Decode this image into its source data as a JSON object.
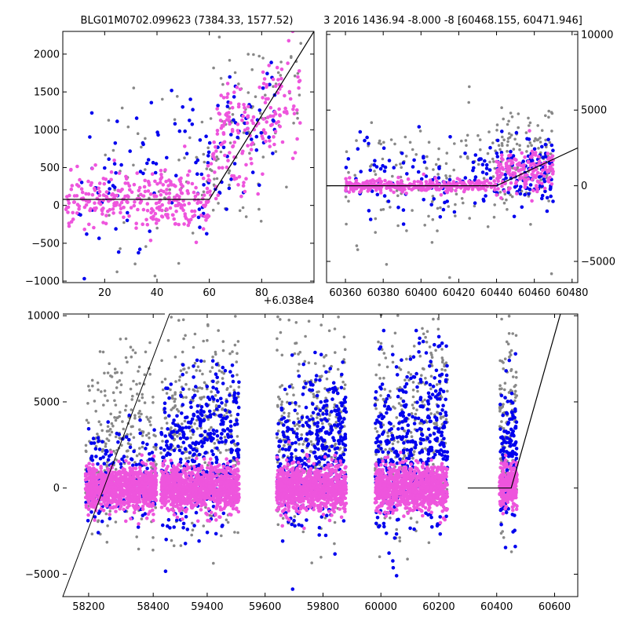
{
  "colors": {
    "gray": "#888888",
    "blue": "#0000ee",
    "pink": "#ee55dd",
    "model": "#000000",
    "frame": "#000000"
  },
  "chart_data": [
    {
      "id": "top-left",
      "type": "scatter",
      "title": "BLG01M0702.099623 (7384.33, 1577.52)",
      "xlim": [
        4,
        100
      ],
      "ylim": [
        -1020,
        2300
      ],
      "xticks": [
        20,
        40,
        60,
        80
      ],
      "yticks": [
        -1000,
        -500,
        0,
        500,
        1000,
        1500,
        2000
      ],
      "offset_label": "+6.038e4",
      "ytick_side": "left",
      "model_line": [
        [
          4,
          80
        ],
        [
          60,
          80
        ],
        [
          100,
          2300
        ]
      ],
      "series": [
        {
          "color": "gray",
          "clusters": [
            [
              20,
              80,
              10,
              900,
              700,
              90
            ],
            [
              60,
              95,
              800,
              1800,
              400,
              60
            ]
          ]
        },
        {
          "color": "blue",
          "clusters": [
            [
              10,
              60,
              50,
              900,
              500,
              70
            ],
            [
              55,
              85,
              300,
              1400,
              400,
              70
            ]
          ]
        },
        {
          "color": "pink",
          "clusters": [
            [
              5,
              60,
              90,
              0,
              180,
              260
            ],
            [
              60,
              95,
              900,
              1400,
              350,
              160
            ],
            [
              40,
              75,
              150,
              300,
              200,
              60
            ]
          ]
        }
      ]
    },
    {
      "id": "top-right",
      "type": "scatter",
      "title": "3 2016 1436.94 -8.000 -8 [60468.155, 60471.946]",
      "xlim": [
        60350,
        60483
      ],
      "ylim": [
        -6400,
        10200
      ],
      "xticks": [
        60360,
        60380,
        60400,
        60420,
        60440,
        60460,
        60480
      ],
      "yticks": [
        -5000,
        0,
        5000,
        10000
      ],
      "ytick_side": "right",
      "model_line": [
        [
          60350,
          0
        ],
        [
          60440,
          0
        ],
        [
          60483,
          2500
        ]
      ],
      "series": [
        {
          "color": "gray",
          "clusters": [
            [
              60360,
              60470,
              300,
              2000,
              2200,
              180
            ],
            [
              60440,
              60470,
              1500,
              3000,
              1500,
              80
            ]
          ]
        },
        {
          "color": "blue",
          "clusters": [
            [
              60360,
              60470,
              200,
              900,
              1400,
              140
            ],
            [
              60440,
              60470,
              1000,
              1200,
              1000,
              80
            ]
          ]
        },
        {
          "color": "pink",
          "clusters": [
            [
              60360,
              60440,
              0,
              0,
              200,
              320
            ],
            [
              60440,
              60470,
              800,
              1200,
              700,
              160
            ]
          ]
        }
      ]
    },
    {
      "id": "bottom",
      "type": "scatter",
      "title": "",
      "xlim": [
        58120,
        60680
      ],
      "ylim": [
        -6300,
        10100
      ],
      "xticks": [
        58200,
        58400,
        59400,
        59600,
        59800,
        60000,
        60200,
        60400,
        60600
      ],
      "ytick_labels_override": null,
      "yticks": [
        -5000,
        0,
        5000,
        10000
      ],
      "ytick_side": "left",
      "broken_axis": true,
      "model_line": [
        [
          60300,
          0
        ],
        [
          60450,
          0
        ],
        [
          60620,
          10100
        ]
      ],
      "series": [
        {
          "color": "gray",
          "clusters": [
            [
              58190,
              58410,
              2500,
              3000,
              2800,
              260
            ],
            [
              59240,
              59510,
              3200,
              4000,
              3000,
              320
            ],
            [
              59640,
              59880,
              3000,
              4000,
              3000,
              300
            ],
            [
              59980,
              60230,
              3000,
              4000,
              3000,
              300
            ],
            [
              60410,
              60470,
              3000,
              4000,
              3000,
              120
            ]
          ]
        },
        {
          "color": "blue",
          "clusters": [
            [
              58190,
              58410,
              300,
              1000,
              1500,
              160
            ],
            [
              59240,
              59510,
              1500,
              3000,
              2200,
              380
            ],
            [
              59640,
              59880,
              1200,
              3000,
              2200,
              380
            ],
            [
              59980,
              60230,
              1500,
              3500,
              2500,
              420
            ],
            [
              60410,
              60470,
              1500,
              2500,
              2000,
              140
            ]
          ]
        },
        {
          "color": "pink",
          "clusters": [
            [
              58190,
              58410,
              0,
              0,
              600,
              900
            ],
            [
              59240,
              59510,
              0,
              0,
              650,
              950
            ],
            [
              59640,
              59880,
              0,
              0,
              650,
              950
            ],
            [
              59980,
              60230,
              0,
              0,
              650,
              950
            ],
            [
              60410,
              60470,
              0,
              300,
              600,
              260
            ]
          ]
        }
      ]
    }
  ]
}
